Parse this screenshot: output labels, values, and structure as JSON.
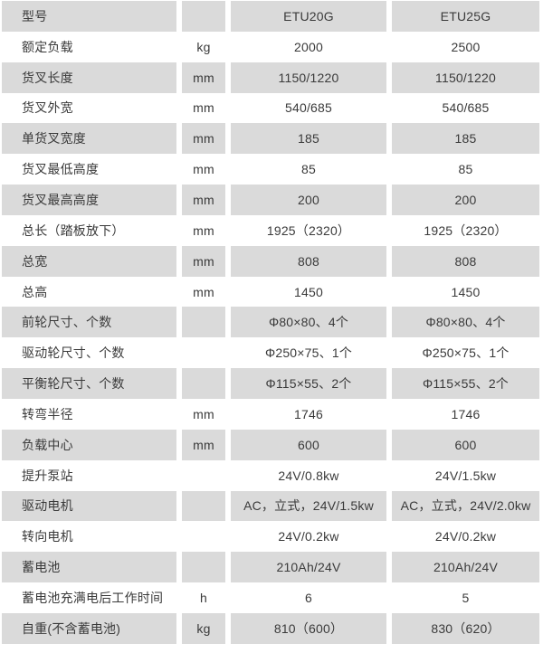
{
  "colors": {
    "stripe": "#dadada",
    "text": "#3a3a3a",
    "background": "#ffffff"
  },
  "table": {
    "models": [
      "ETU20G",
      "ETU25G"
    ],
    "rows": [
      {
        "label": "型号",
        "unit": "",
        "etu20g": "ETU20G",
        "etu25g": "ETU25G"
      },
      {
        "label": "额定负载",
        "unit": "kg",
        "etu20g": "2000",
        "etu25g": "2500"
      },
      {
        "label": "货叉长度",
        "unit": "mm",
        "etu20g": "1150/1220",
        "etu25g": "1150/1220"
      },
      {
        "label": "货叉外宽",
        "unit": "mm",
        "etu20g": "540/685",
        "etu25g": "540/685"
      },
      {
        "label": "单货叉宽度",
        "unit": "mm",
        "etu20g": "185",
        "etu25g": "185"
      },
      {
        "label": "货叉最低高度",
        "unit": "mm",
        "etu20g": "85",
        "etu25g": "85"
      },
      {
        "label": "货叉最高高度",
        "unit": "mm",
        "etu20g": "200",
        "etu25g": "200"
      },
      {
        "label": "总长（踏板放下）",
        "unit": "mm",
        "etu20g": "1925（2320）",
        "etu25g": "1925（2320）"
      },
      {
        "label": "总宽",
        "unit": "mm",
        "etu20g": "808",
        "etu25g": "808"
      },
      {
        "label": "总高",
        "unit": "mm",
        "etu20g": "1450",
        "etu25g": "1450"
      },
      {
        "label": "前轮尺寸、个数",
        "unit": "",
        "etu20g": "Φ80×80、4个",
        "etu25g": "Φ80×80、4个"
      },
      {
        "label": "驱动轮尺寸、个数",
        "unit": "",
        "etu20g": "Φ250×75、1个",
        "etu25g": "Φ250×75、1个"
      },
      {
        "label": "平衡轮尺寸、个数",
        "unit": "",
        "etu20g": "Φ115×55、2个",
        "etu25g": "Φ115×55、2个"
      },
      {
        "label": "转弯半径",
        "unit": "mm",
        "etu20g": "1746",
        "etu25g": "1746"
      },
      {
        "label": "负载中心",
        "unit": "mm",
        "etu20g": "600",
        "etu25g": "600"
      },
      {
        "label": "提升泵站",
        "unit": "",
        "etu20g": "24V/0.8kw",
        "etu25g": "24V/1.5kw"
      },
      {
        "label": "驱动电机",
        "unit": "",
        "etu20g": "AC，立式，24V/1.5kw",
        "etu25g": "AC，立式，24V/2.0kw"
      },
      {
        "label": "转向电机",
        "unit": "",
        "etu20g": "24V/0.2kw",
        "etu25g": "24V/0.2kw"
      },
      {
        "label": "蓄电池",
        "unit": "",
        "etu20g": "210Ah/24V",
        "etu25g": "210Ah/24V"
      },
      {
        "label": "蓄电池充满电后工作时间",
        "unit": "h",
        "etu20g": "6",
        "etu25g": "5"
      },
      {
        "label": "自重(不含蓄电池)",
        "unit": "kg",
        "etu20g": "810（600）",
        "etu25g": "830（620）"
      }
    ]
  }
}
